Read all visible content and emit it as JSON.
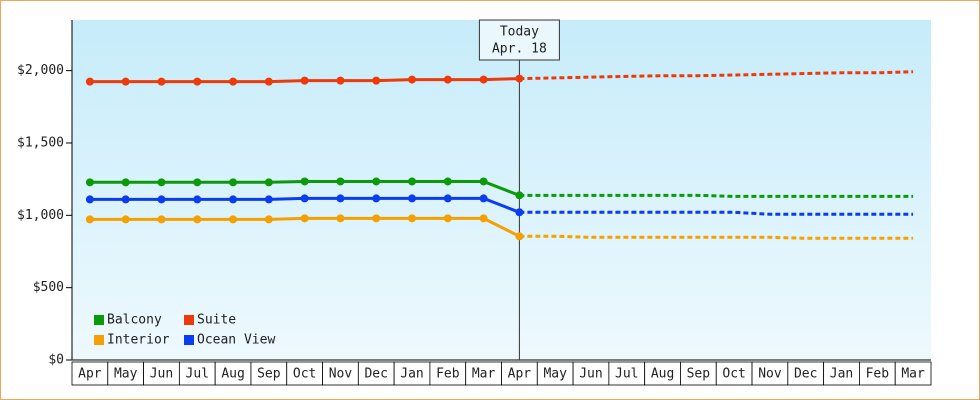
{
  "chart_data": {
    "type": "line",
    "categories": [
      "Apr",
      "May",
      "Jun",
      "Jul",
      "Aug",
      "Sep",
      "Oct",
      "Nov",
      "Dec",
      "Jan",
      "Feb",
      "Mar",
      "Apr",
      "May",
      "Jun",
      "Jul",
      "Aug",
      "Sep",
      "Oct",
      "Nov",
      "Dec",
      "Jan",
      "Feb",
      "Mar"
    ],
    "series": [
      {
        "name": "Balcony",
        "color": "#0a9a0a",
        "values": [
          1228,
          1228,
          1228,
          1228,
          1228,
          1228,
          1234,
          1234,
          1234,
          1234,
          1234,
          1234,
          1138,
          null,
          null,
          null,
          null,
          null,
          null,
          null,
          null,
          null,
          null,
          null
        ],
        "forecast": [
          null,
          null,
          null,
          null,
          null,
          null,
          null,
          null,
          null,
          null,
          null,
          null,
          1138,
          1138,
          1138,
          1138,
          1138,
          1138,
          1131,
          1131,
          1131,
          1131,
          1131,
          1131
        ]
      },
      {
        "name": "Suite",
        "color": "#ee3a0a",
        "values": [
          1924,
          1924,
          1924,
          1924,
          1924,
          1924,
          1931,
          1931,
          1931,
          1938,
          1938,
          1938,
          1945,
          null,
          null,
          null,
          null,
          null,
          null,
          null,
          null,
          null,
          null,
          null
        ],
        "forecast": [
          null,
          null,
          null,
          null,
          null,
          null,
          null,
          null,
          null,
          null,
          null,
          null,
          1945,
          1950,
          1955,
          1960,
          1965,
          1965,
          1970,
          1975,
          1980,
          1985,
          1985,
          1993
        ]
      },
      {
        "name": "Interior",
        "color": "#f5a000",
        "values": [
          972,
          972,
          972,
          972,
          972,
          972,
          979,
          979,
          979,
          979,
          979,
          979,
          855,
          null,
          null,
          null,
          null,
          null,
          null,
          null,
          null,
          null,
          null,
          null
        ],
        "forecast": [
          null,
          null,
          null,
          null,
          null,
          null,
          null,
          null,
          null,
          null,
          null,
          null,
          855,
          855,
          848,
          848,
          848,
          848,
          848,
          848,
          841,
          841,
          841,
          841
        ]
      },
      {
        "name": "Ocean View",
        "color": "#0a3cf0",
        "values": [
          1110,
          1110,
          1110,
          1110,
          1110,
          1110,
          1117,
          1117,
          1117,
          1117,
          1117,
          1117,
          1021,
          null,
          null,
          null,
          null,
          null,
          null,
          null,
          null,
          null,
          null,
          null
        ],
        "forecast": [
          null,
          null,
          null,
          null,
          null,
          null,
          null,
          null,
          null,
          null,
          null,
          null,
          1021,
          1021,
          1021,
          1021,
          1021,
          1021,
          1021,
          1007,
          1007,
          1007,
          1007,
          1007
        ]
      }
    ],
    "ylim": [
      0,
      2350
    ],
    "yticks": [
      {
        "value": 0,
        "label": "$0"
      },
      {
        "value": 500,
        "label": "$500"
      },
      {
        "value": 1000,
        "label": "$1,000"
      },
      {
        "value": 1500,
        "label": "$1,500"
      },
      {
        "value": 2000,
        "label": "$2,000"
      }
    ],
    "today": {
      "label": "Today",
      "date": "Apr. 18",
      "category": 12
    },
    "legend": "lower left"
  }
}
